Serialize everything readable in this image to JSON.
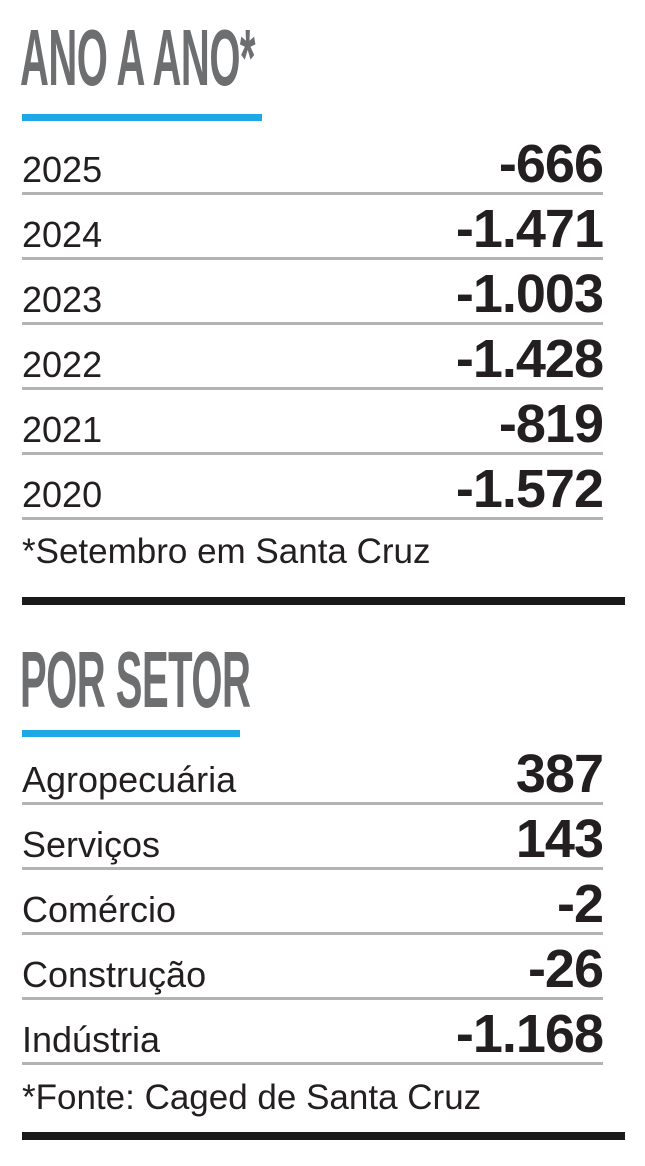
{
  "sections": [
    {
      "title": "ANO A ANO*",
      "rows": [
        {
          "label": "2025",
          "value": "-666"
        },
        {
          "label": "2024",
          "value": "-1.471"
        },
        {
          "label": "2023",
          "value": "-1.003"
        },
        {
          "label": "2022",
          "value": "-1.428"
        },
        {
          "label": "2021",
          "value": "-819"
        },
        {
          "label": "2020",
          "value": "-1.572"
        }
      ],
      "note": "*Setembro em Santa Cruz"
    },
    {
      "title": "POR SETOR",
      "rows": [
        {
          "label": "Agropecuária",
          "value": "387"
        },
        {
          "label": "Serviços",
          "value": "143"
        },
        {
          "label": "Comércio",
          "value": "-2"
        },
        {
          "label": "Construção",
          "value": "-26"
        },
        {
          "label": "Indústria",
          "value": "-1.168"
        }
      ],
      "note": "*Fonte: Caged de Santa Cruz"
    }
  ]
}
